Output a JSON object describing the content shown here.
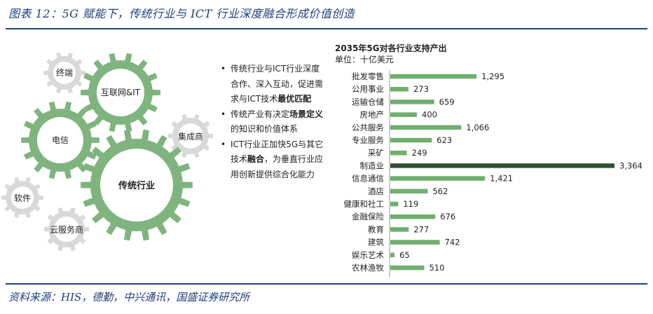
{
  "caption": "图表 12：5G 赋能下，传统行业与 ICT 行业深度融合形成价值创造",
  "source": "资料来源：HIS，德勤，中兴通讯，国盛证券研究所",
  "gears": {
    "internet": "互联网&IT",
    "telecom": "电信",
    "traditional": "传统行业",
    "terminal": "终端",
    "integrator": "集成商",
    "software": "软件",
    "cloud": "云服务商"
  },
  "bullets": [
    {
      "parts": [
        {
          "t": "传统行业与ICT行业深度合作、深入互动，促进需求与ICT技术",
          "b": false
        },
        {
          "t": "最优匹配",
          "b": true
        }
      ]
    },
    {
      "parts": [
        {
          "t": "传统产业有决定",
          "b": false
        },
        {
          "t": "场景定义",
          "b": true
        },
        {
          "t": "的知识和价值体系",
          "b": false
        }
      ]
    },
    {
      "parts": [
        {
          "t": "ICT行业正加快5G与其它技术",
          "b": false
        },
        {
          "t": "融合",
          "b": true
        },
        {
          "t": "，为垂直行业应用创新提供综合化能力",
          "b": false
        }
      ]
    }
  ],
  "colors": {
    "gear": "#7fb47f",
    "small_gear": "#d9d9d9",
    "bar": "#6fae6f",
    "bar_highlight": "#2f4f2f",
    "accent": "#1f3f7a"
  },
  "chart_data": {
    "type": "bar",
    "orientation": "horizontal",
    "title": "2035年5G对各行业支持产出",
    "unit": "单位：十亿美元",
    "categories": [
      "批发零售",
      "公用事业",
      "运输仓储",
      "房地产",
      "公共服务",
      "专业服务",
      "采矿",
      "制造业",
      "信息通信",
      "酒店",
      "健康和社工",
      "金融保险",
      "教育",
      "建筑",
      "娱乐艺术",
      "农林渔牧"
    ],
    "values": [
      1295,
      273,
      659,
      400,
      1066,
      623,
      249,
      3364,
      1421,
      562,
      119,
      676,
      277,
      742,
      65,
      510
    ],
    "value_labels": [
      "1,295",
      "273",
      "659",
      "400",
      "1,066",
      "623",
      "249",
      "3,364",
      "1,421",
      "562",
      "119",
      "676",
      "277",
      "742",
      "65",
      "510"
    ],
    "highlight": "制造业",
    "xlim": [
      0,
      3364
    ]
  }
}
